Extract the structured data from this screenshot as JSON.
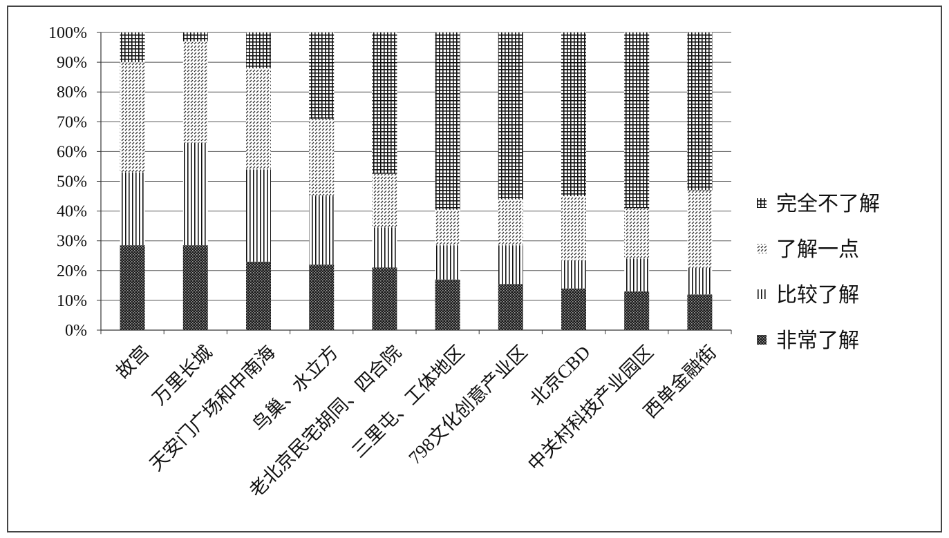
{
  "chart_data": {
    "type": "bar",
    "stacked": true,
    "percent": true,
    "categories": [
      "故宫",
      "万里长城",
      "天安门广场和中南海",
      "鸟巢、水立方",
      "老北京民宅胡同、四合院",
      "三里屯、工体地区",
      "798文化创意产业区",
      "北京CBD",
      "中关村科技产业园区",
      "西单金融街"
    ],
    "series": [
      {
        "name": "非常了解",
        "pattern": "dots",
        "values": [
          28.5,
          28.5,
          23,
          22,
          21,
          17,
          15.5,
          14,
          13,
          12
        ]
      },
      {
        "name": "比较了解",
        "pattern": "vertical",
        "values": [
          24.5,
          34.5,
          31,
          23,
          13.5,
          11.5,
          13,
          9.5,
          11,
          9
        ]
      },
      {
        "name": "了解一点",
        "pattern": "diagonal",
        "values": [
          37,
          34,
          34,
          26,
          18,
          12,
          15.5,
          21.5,
          17,
          26
        ]
      },
      {
        "name": "完全不了解",
        "pattern": "grid",
        "values": [
          10,
          3,
          12,
          29,
          47.5,
          59.5,
          56,
          55,
          59,
          53
        ]
      }
    ],
    "legend_order": [
      "完全不了解",
      "了解一点",
      "比较了解",
      "非常了解"
    ],
    "y_ticks": [
      "0%",
      "10%",
      "20%",
      "30%",
      "40%",
      "50%",
      "60%",
      "70%",
      "80%",
      "90%",
      "100%"
    ],
    "ylim": [
      0,
      100
    ],
    "grid": true,
    "legend_position": "right"
  }
}
